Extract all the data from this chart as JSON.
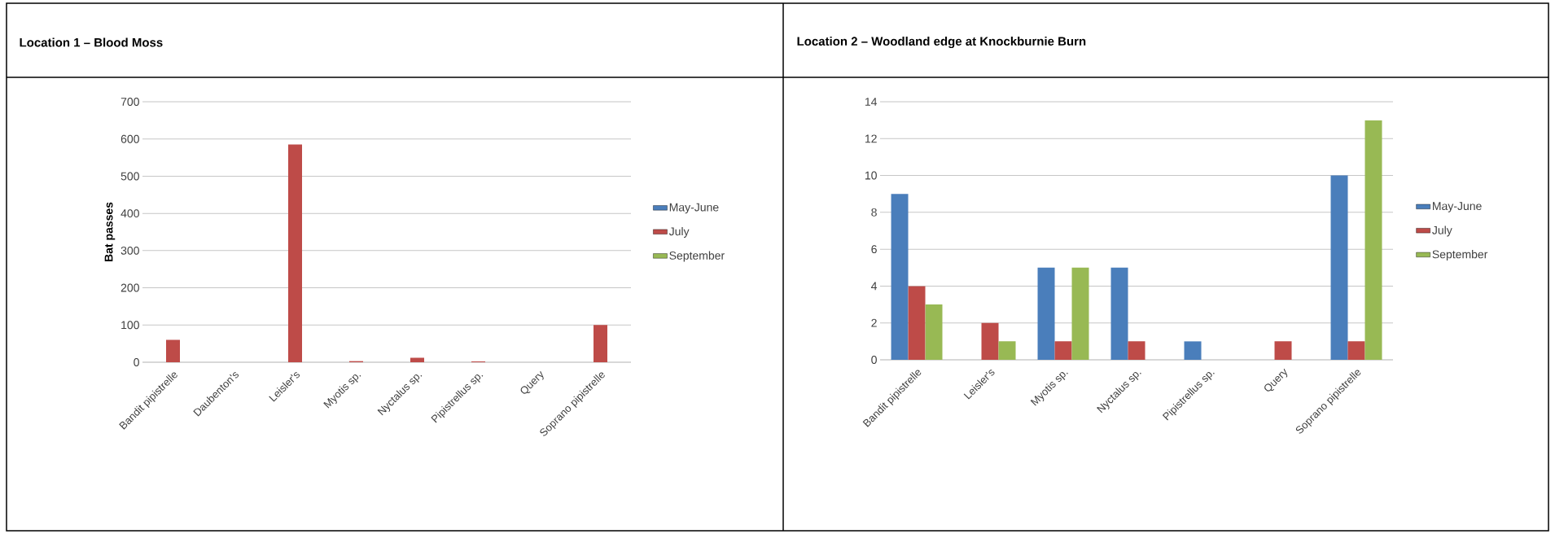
{
  "chart_data": [
    {
      "type": "bar",
      "title": "Location 1 – Blood Moss",
      "ylabel": "Bat passes",
      "categories": [
        "Bandit pipistrelle",
        "Daubenton's",
        "Leisler's",
        "Myotis sp.",
        "Nyctalus sp.",
        "Pipistrellus sp.",
        "Query",
        "Soprano pipistrelle"
      ],
      "series": [
        {
          "name": "May-June",
          "color": "#4a7ebb",
          "values": [
            0,
            0,
            0,
            0,
            0,
            0,
            0,
            0
          ]
        },
        {
          "name": "July",
          "color": "#be4b48",
          "values": [
            60,
            0,
            585,
            3,
            12,
            2,
            null,
            100
          ]
        },
        {
          "name": "September",
          "color": "#98b954",
          "values": [
            0,
            0,
            0,
            0,
            0,
            0,
            0,
            0
          ]
        }
      ],
      "ylim": [
        0,
        700
      ],
      "yticks": [
        0,
        100,
        200,
        300,
        400,
        500,
        600,
        700
      ],
      "grid": "y",
      "legend": "right"
    },
    {
      "type": "bar",
      "title": "Location 2 – Woodland edge at Knockburnie Burn",
      "categories": [
        "Bandit pipistrelle",
        "Leisler's",
        "Myotis sp.",
        "Nyctalus sp.",
        "Pipistrellus sp.",
        "Query",
        "Soprano pipistrelle"
      ],
      "series": [
        {
          "name": "May-June",
          "color": "#4a7ebb",
          "values": [
            9,
            0,
            5,
            5,
            1,
            0,
            10
          ]
        },
        {
          "name": "July",
          "color": "#be4b48",
          "values": [
            4,
            2,
            1,
            1,
            0,
            1,
            1
          ]
        },
        {
          "name": "September",
          "color": "#98b954",
          "values": [
            3,
            1,
            5,
            0,
            0,
            0,
            13
          ]
        }
      ],
      "ylim": [
        0,
        14
      ],
      "yticks": [
        0,
        2,
        4,
        6,
        8,
        10,
        12,
        14
      ],
      "grid": "y",
      "legend": "right"
    }
  ]
}
